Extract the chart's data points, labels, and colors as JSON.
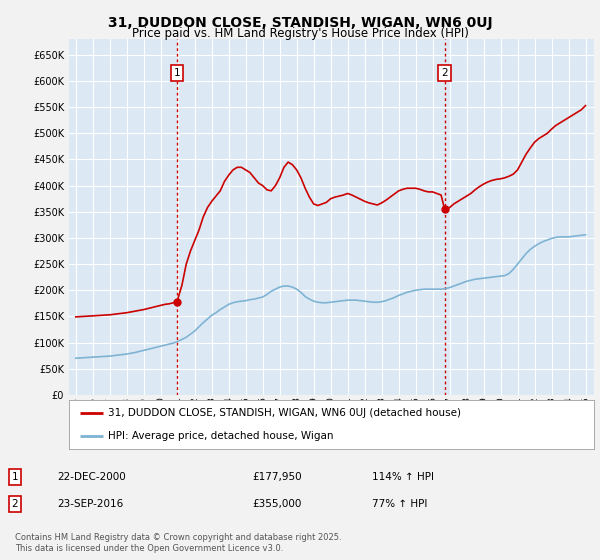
{
  "title": "31, DUDDON CLOSE, STANDISH, WIGAN, WN6 0UJ",
  "subtitle": "Price paid vs. HM Land Registry's House Price Index (HPI)",
  "ylim": [
    0,
    680000
  ],
  "yticks": [
    0,
    50000,
    100000,
    150000,
    200000,
    250000,
    300000,
    350000,
    400000,
    450000,
    500000,
    550000,
    600000,
    650000
  ],
  "bg_color": "#dce9f5",
  "grid_color": "#ffffff",
  "red_line_color": "#cc0000",
  "blue_line_color": "#7fb3d3",
  "vline_color": "#cc0000",
  "legend_label_red": "31, DUDDON CLOSE, STANDISH, WIGAN, WN6 0UJ (detached house)",
  "legend_label_blue": "HPI: Average price, detached house, Wigan",
  "annotation_1_label": "1",
  "annotation_1_date": "22-DEC-2000",
  "annotation_1_price": "£177,950",
  "annotation_1_hpi": "114% ↑ HPI",
  "annotation_2_label": "2",
  "annotation_2_date": "23-SEP-2016",
  "annotation_2_price": "£355,000",
  "annotation_2_hpi": "77% ↑ HPI",
  "footer": "Contains HM Land Registry data © Crown copyright and database right 2025.\nThis data is licensed under the Open Government Licence v3.0.",
  "sale_year_1": 2000.958,
  "sale_price_1": 177950,
  "sale_year_2": 2016.708,
  "sale_price_2": 355000,
  "red_x": [
    1995.0,
    1995.25,
    1995.5,
    1995.75,
    1996.0,
    1996.25,
    1996.5,
    1996.75,
    1997.0,
    1997.25,
    1997.5,
    1997.75,
    1998.0,
    1998.25,
    1998.5,
    1998.75,
    1999.0,
    1999.25,
    1999.5,
    1999.75,
    2000.0,
    2000.25,
    2000.5,
    2000.75,
    2000.958,
    2001.25,
    2001.5,
    2001.75,
    2002.0,
    2002.25,
    2002.5,
    2002.75,
    2003.0,
    2003.25,
    2003.5,
    2003.75,
    2004.0,
    2004.25,
    2004.5,
    2004.75,
    2005.0,
    2005.25,
    2005.5,
    2005.75,
    2006.0,
    2006.25,
    2006.5,
    2006.75,
    2007.0,
    2007.25,
    2007.5,
    2007.75,
    2008.0,
    2008.25,
    2008.5,
    2008.75,
    2009.0,
    2009.25,
    2009.5,
    2009.75,
    2010.0,
    2010.25,
    2010.5,
    2010.75,
    2011.0,
    2011.25,
    2011.5,
    2011.75,
    2012.0,
    2012.25,
    2012.5,
    2012.75,
    2013.0,
    2013.25,
    2013.5,
    2013.75,
    2014.0,
    2014.25,
    2014.5,
    2014.75,
    2015.0,
    2015.25,
    2015.5,
    2015.75,
    2016.0,
    2016.25,
    2016.5,
    2016.708,
    2017.0,
    2017.25,
    2017.5,
    2017.75,
    2018.0,
    2018.25,
    2018.5,
    2018.75,
    2019.0,
    2019.25,
    2019.5,
    2019.75,
    2020.0,
    2020.25,
    2020.5,
    2020.75,
    2021.0,
    2021.25,
    2021.5,
    2021.75,
    2022.0,
    2022.25,
    2022.5,
    2022.75,
    2023.0,
    2023.25,
    2023.5,
    2023.75,
    2024.0,
    2024.25,
    2024.5,
    2024.75,
    2025.0
  ],
  "red_y": [
    149000,
    149500,
    150000,
    150500,
    151000,
    151500,
    152000,
    152500,
    153000,
    154000,
    155000,
    156000,
    157000,
    158500,
    160000,
    161500,
    163000,
    165000,
    167000,
    169000,
    171000,
    173000,
    174000,
    176000,
    177950,
    210000,
    250000,
    275000,
    295000,
    315000,
    340000,
    358000,
    370000,
    380000,
    390000,
    408000,
    420000,
    430000,
    435000,
    435000,
    430000,
    425000,
    415000,
    405000,
    400000,
    392000,
    390000,
    400000,
    415000,
    435000,
    445000,
    440000,
    430000,
    415000,
    395000,
    378000,
    365000,
    362000,
    365000,
    368000,
    375000,
    378000,
    380000,
    382000,
    385000,
    382000,
    378000,
    374000,
    370000,
    367000,
    365000,
    363000,
    367000,
    372000,
    378000,
    384000,
    390000,
    393000,
    395000,
    395000,
    395000,
    393000,
    390000,
    388000,
    388000,
    385000,
    382000,
    355000,
    358000,
    365000,
    370000,
    375000,
    380000,
    385000,
    392000,
    398000,
    403000,
    407000,
    410000,
    412000,
    413000,
    415000,
    418000,
    422000,
    430000,
    445000,
    460000,
    472000,
    483000,
    490000,
    495000,
    500000,
    508000,
    515000,
    520000,
    525000,
    530000,
    535000,
    540000,
    545000,
    553000
  ],
  "blue_x": [
    1995.0,
    1995.25,
    1995.5,
    1995.75,
    1996.0,
    1996.25,
    1996.5,
    1996.75,
    1997.0,
    1997.25,
    1997.5,
    1997.75,
    1998.0,
    1998.25,
    1998.5,
    1998.75,
    1999.0,
    1999.25,
    1999.5,
    1999.75,
    2000.0,
    2000.25,
    2000.5,
    2000.75,
    2001.0,
    2001.25,
    2001.5,
    2001.75,
    2002.0,
    2002.25,
    2002.5,
    2002.75,
    2003.0,
    2003.25,
    2003.5,
    2003.75,
    2004.0,
    2004.25,
    2004.5,
    2004.75,
    2005.0,
    2005.25,
    2005.5,
    2005.75,
    2006.0,
    2006.25,
    2006.5,
    2006.75,
    2007.0,
    2007.25,
    2007.5,
    2007.75,
    2008.0,
    2008.25,
    2008.5,
    2008.75,
    2009.0,
    2009.25,
    2009.5,
    2009.75,
    2010.0,
    2010.25,
    2010.5,
    2010.75,
    2011.0,
    2011.25,
    2011.5,
    2011.75,
    2012.0,
    2012.25,
    2012.5,
    2012.75,
    2013.0,
    2013.25,
    2013.5,
    2013.75,
    2014.0,
    2014.25,
    2014.5,
    2014.75,
    2015.0,
    2015.25,
    2015.5,
    2015.75,
    2016.0,
    2016.25,
    2016.5,
    2016.75,
    2017.0,
    2017.25,
    2017.5,
    2017.75,
    2018.0,
    2018.25,
    2018.5,
    2018.75,
    2019.0,
    2019.25,
    2019.5,
    2019.75,
    2020.0,
    2020.25,
    2020.5,
    2020.75,
    2021.0,
    2021.25,
    2021.5,
    2021.75,
    2022.0,
    2022.25,
    2022.5,
    2022.75,
    2023.0,
    2023.25,
    2023.5,
    2023.75,
    2024.0,
    2024.25,
    2024.5,
    2024.75,
    2025.0
  ],
  "blue_y": [
    70000,
    70500,
    71000,
    71500,
    72000,
    72500,
    73000,
    73500,
    74000,
    75000,
    76000,
    77000,
    78000,
    79500,
    81000,
    83000,
    85000,
    87000,
    89000,
    91000,
    93000,
    95000,
    97000,
    99000,
    102000,
    106000,
    110000,
    116000,
    122000,
    130000,
    138000,
    145000,
    152000,
    157000,
    163000,
    168000,
    173000,
    176000,
    178000,
    179000,
    180000,
    182000,
    183000,
    185000,
    187000,
    192000,
    198000,
    202000,
    206000,
    208000,
    208000,
    206000,
    202000,
    196000,
    188000,
    183000,
    179000,
    177000,
    176000,
    176000,
    177000,
    178000,
    179000,
    180000,
    181000,
    181000,
    181000,
    180000,
    179000,
    178000,
    177000,
    177000,
    178000,
    180000,
    183000,
    186000,
    190000,
    193000,
    196000,
    198000,
    200000,
    201000,
    202000,
    202000,
    202000,
    202000,
    202000,
    203000,
    205000,
    208000,
    211000,
    214000,
    217000,
    219000,
    221000,
    222000,
    223000,
    224000,
    225000,
    226000,
    227000,
    228000,
    232000,
    240000,
    250000,
    260000,
    270000,
    278000,
    284000,
    289000,
    293000,
    296000,
    299000,
    301000,
    302000,
    302000,
    302000,
    303000,
    304000,
    305000,
    306000
  ]
}
